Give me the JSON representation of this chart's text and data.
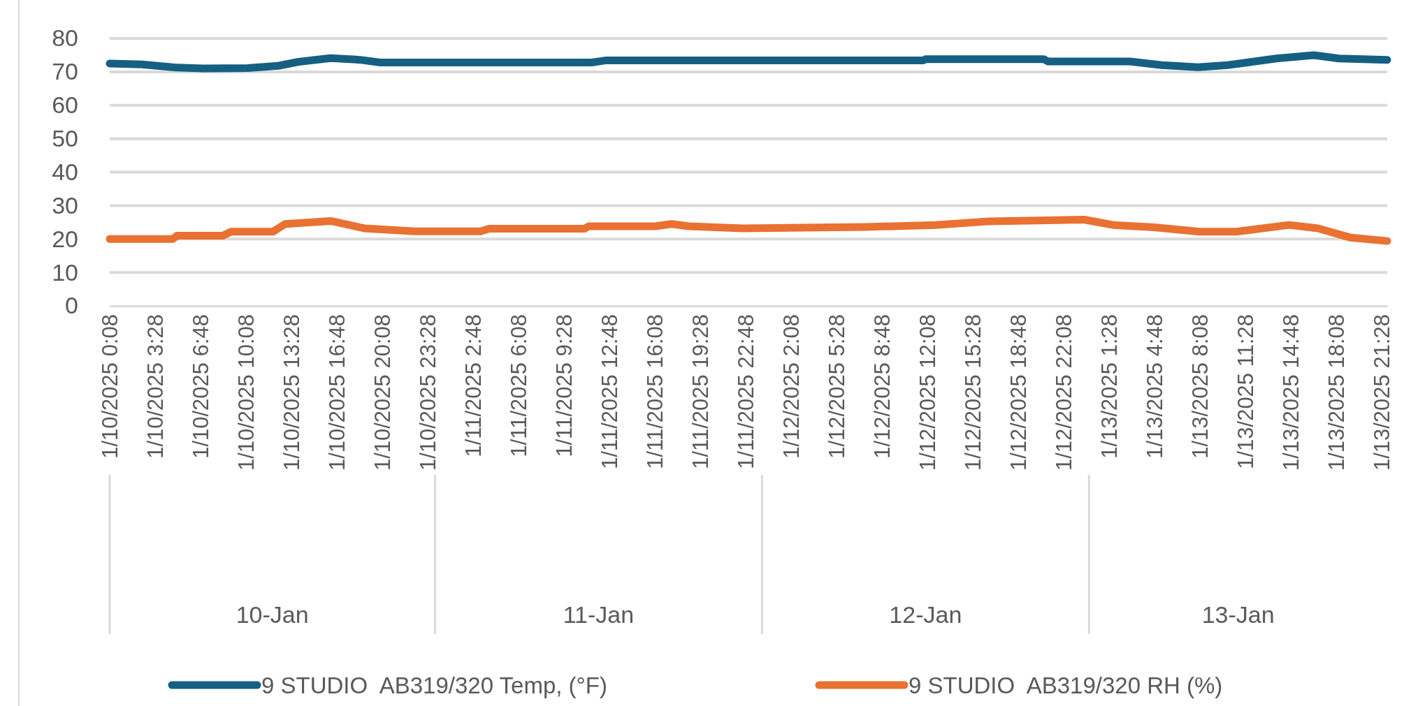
{
  "chart_data": {
    "type": "line",
    "ylim": [
      0,
      80
    ],
    "yticks": [
      0,
      10,
      20,
      30,
      40,
      50,
      60,
      70,
      80
    ],
    "grid": "y",
    "legend": "bottom",
    "line_style": "solid",
    "marker": "none",
    "xlim": [
      "2025-01-10T00:08",
      "2025-01-13T21:53"
    ],
    "xticks": [
      {
        "value": "2025-01-10T00:08",
        "label": "1/10/2025 0:08"
      },
      {
        "value": "2025-01-10T03:28",
        "label": "1/10/2025 3:28"
      },
      {
        "value": "2025-01-10T06:48",
        "label": "1/10/2025 6:48"
      },
      {
        "value": "2025-01-10T10:08",
        "label": "1/10/2025 10:08"
      },
      {
        "value": "2025-01-10T13:28",
        "label": "1/10/2025 13:28"
      },
      {
        "value": "2025-01-10T16:48",
        "label": "1/10/2025 16:48"
      },
      {
        "value": "2025-01-10T20:08",
        "label": "1/10/2025 20:08"
      },
      {
        "value": "2025-01-10T23:28",
        "label": "1/10/2025 23:28"
      },
      {
        "value": "2025-01-11T02:48",
        "label": "1/11/2025 2:48"
      },
      {
        "value": "2025-01-11T06:08",
        "label": "1/11/2025 6:08"
      },
      {
        "value": "2025-01-11T09:28",
        "label": "1/11/2025 9:28"
      },
      {
        "value": "2025-01-11T12:48",
        "label": "1/11/2025 12:48"
      },
      {
        "value": "2025-01-11T16:08",
        "label": "1/11/2025 16:08"
      },
      {
        "value": "2025-01-11T19:28",
        "label": "1/11/2025 19:28"
      },
      {
        "value": "2025-01-11T22:48",
        "label": "1/11/2025 22:48"
      },
      {
        "value": "2025-01-12T02:08",
        "label": "1/12/2025 2:08"
      },
      {
        "value": "2025-01-12T05:28",
        "label": "1/12/2025 5:28"
      },
      {
        "value": "2025-01-12T08:48",
        "label": "1/12/2025 8:48"
      },
      {
        "value": "2025-01-12T12:08",
        "label": "1/12/2025 12:08"
      },
      {
        "value": "2025-01-12T15:28",
        "label": "1/12/2025 15:28"
      },
      {
        "value": "2025-01-12T18:48",
        "label": "1/12/2025 18:48"
      },
      {
        "value": "2025-01-12T22:08",
        "label": "1/12/2025 22:08"
      },
      {
        "value": "2025-01-13T01:28",
        "label": "1/13/2025 1:28"
      },
      {
        "value": "2025-01-13T04:48",
        "label": "1/13/2025 4:48"
      },
      {
        "value": "2025-01-13T08:08",
        "label": "1/13/2025 8:08"
      },
      {
        "value": "2025-01-13T11:28",
        "label": "1/13/2025 11:28"
      },
      {
        "value": "2025-01-13T14:48",
        "label": "1/13/2025 14:48"
      },
      {
        "value": "2025-01-13T18:08",
        "label": "1/13/2025 18:08"
      },
      {
        "value": "2025-01-13T21:28",
        "label": "1/13/2025 21:28"
      }
    ],
    "annotations": [
      "10-Jan",
      "11-Jan",
      "12-Jan",
      "13-Jan"
    ],
    "series": [
      {
        "name": "9 STUDIO  AB319/320 Temp, (°F)",
        "color": "#156082",
        "x": [
          "2025-01-10T00:08",
          "2025-01-10T02:30",
          "2025-01-10T05:00",
          "2025-01-10T07:00",
          "2025-01-10T10:15",
          "2025-01-10T12:30",
          "2025-01-10T14:00",
          "2025-01-10T16:20",
          "2025-01-10T18:30",
          "2025-01-10T20:00",
          "2025-01-11T11:30",
          "2025-01-11T12:30",
          "2025-01-12T11:50",
          "2025-01-12T12:00",
          "2025-01-12T20:40",
          "2025-01-12T21:00",
          "2025-01-13T03:00",
          "2025-01-13T05:20",
          "2025-01-13T08:00",
          "2025-01-13T10:10",
          "2025-01-13T13:45",
          "2025-01-13T16:30",
          "2025-01-13T18:20",
          "2025-01-13T21:53"
        ],
        "values": [
          72.5,
          72.2,
          71.3,
          71.0,
          71.1,
          71.8,
          73.0,
          74.1,
          73.6,
          72.8,
          72.8,
          73.4,
          73.4,
          73.8,
          73.8,
          73.1,
          73.1,
          72.0,
          71.4,
          72.0,
          74.0,
          75.0,
          74.0,
          73.6
        ]
      },
      {
        "name": "9 STUDIO  AB319/320 RH (%)",
        "color": "#e97132",
        "x": [
          "2025-01-10T00:08",
          "2025-01-10T04:46",
          "2025-01-10T05:04",
          "2025-01-10T08:26",
          "2025-01-10T09:03",
          "2025-01-10T12:07",
          "2025-01-10T13:01",
          "2025-01-10T16:21",
          "2025-01-10T18:49",
          "2025-01-10T22:29",
          "2025-01-11T03:22",
          "2025-01-11T03:59",
          "2025-01-11T10:59",
          "2025-01-11T11:17",
          "2025-01-11T16:10",
          "2025-01-11T17:22",
          "2025-01-11T18:38",
          "2025-01-11T22:37",
          "2025-01-12T07:40",
          "2025-01-12T12:45",
          "2025-01-12T16:41",
          "2025-01-12T23:38",
          "2025-01-13T01:45",
          "2025-01-13T04:46",
          "2025-01-13T08:06",
          "2025-01-13T10:49",
          "2025-01-13T14:41",
          "2025-01-13T16:48",
          "2025-01-13T19:13",
          "2025-01-13T21:53"
        ],
        "values": [
          20.0,
          20.0,
          21.0,
          21.0,
          22.2,
          22.2,
          24.5,
          25.4,
          23.2,
          22.3,
          22.3,
          23.1,
          23.1,
          23.8,
          23.8,
          24.5,
          23.8,
          23.2,
          23.6,
          24.2,
          25.3,
          25.8,
          24.2,
          23.5,
          22.2,
          22.2,
          24.2,
          23.2,
          20.4,
          19.4
        ]
      }
    ]
  }
}
